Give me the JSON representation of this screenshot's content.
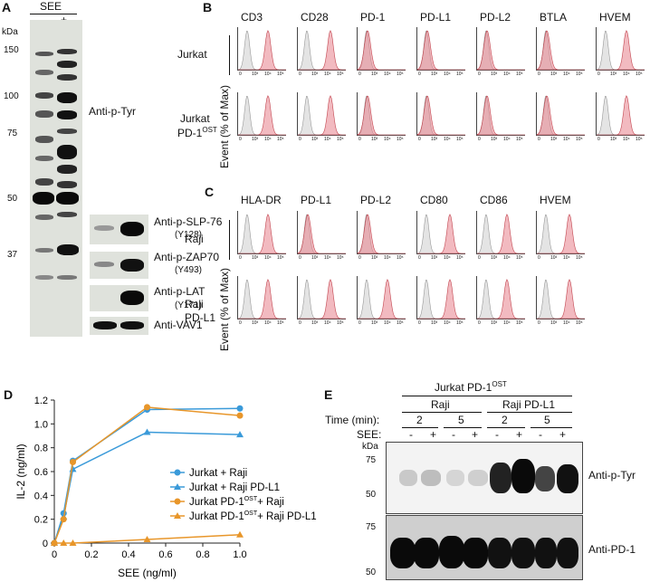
{
  "panels": {
    "A": "A",
    "B": "B",
    "C": "C",
    "D": "D",
    "E": "E"
  },
  "A": {
    "see_label": "SEE",
    "lanes": [
      "-",
      "+"
    ],
    "kda_label": "kDa",
    "markers": [
      "150",
      "100",
      "75",
      "50",
      "37"
    ],
    "main_blot_label": "Anti-p-Tyr",
    "side_blots": [
      {
        "label": "Anti-p-SLP-76",
        "sub": "(Y128)"
      },
      {
        "label": "Anti-p-ZAP70",
        "sub": "(Y493)"
      },
      {
        "label": "Anti-p-LAT",
        "sub": "(Y171)"
      },
      {
        "label": "Anti-VAV1",
        "sub": ""
      }
    ]
  },
  "B": {
    "markers": [
      "CD3",
      "CD28",
      "PD-1",
      "PD-L1",
      "PD-L2",
      "BTLA",
      "HVEM"
    ],
    "rows": [
      {
        "label": "Jurkat",
        "sub": ""
      },
      {
        "label": "Jurkat",
        "sub": "PD-1",
        "sup": "OST"
      }
    ],
    "ylabel": "Event (% of Max)"
  },
  "C": {
    "markers": [
      "HLA-DR",
      "PD-L1",
      "PD-L2",
      "CD80",
      "CD86",
      "HVEM"
    ],
    "rows": [
      {
        "label": "Raji",
        "sub": ""
      },
      {
        "label": "Raji",
        "sub": "PD-L1"
      }
    ],
    "ylabel": "Event (% of Max)"
  },
  "hist_ticks": [
    "0",
    "10³",
    "10⁴",
    "10⁵"
  ],
  "chart_data": {
    "type": "line",
    "xlabel": "SEE (ng/ml)",
    "ylabel": "IL-2 (ng/ml)",
    "xlim": [
      0,
      1.0
    ],
    "ylim": [
      0,
      1.2
    ],
    "xticks": [
      "0",
      "0.2",
      "0.4",
      "0.6",
      "0.8",
      "1.0"
    ],
    "yticks": [
      "0",
      "0.2",
      "0.4",
      "0.6",
      "0.8",
      "1.0",
      "1.2"
    ],
    "x": [
      0,
      0.05,
      0.1,
      0.5,
      1.0
    ],
    "series": [
      {
        "name": "Jurkat + Raji",
        "marker": "circle",
        "color": "#3a9ad9",
        "values": [
          0.0,
          0.25,
          0.69,
          1.12,
          1.13
        ]
      },
      {
        "name": "Jurkat + Raji PD-L1",
        "marker": "triangle",
        "color": "#3a9ad9",
        "values": [
          0.0,
          0.22,
          0.62,
          0.93,
          0.91
        ]
      },
      {
        "name": "Jurkat PD-1",
        "name_sup": "OST",
        "name_tail": "+ Raji",
        "marker": "circle",
        "color": "#e8962a",
        "values": [
          0.0,
          0.2,
          0.68,
          1.14,
          1.07
        ]
      },
      {
        "name": "Jurkat PD-1",
        "name_sup": "OST",
        "name_tail": "+ Raji PD-L1",
        "marker": "triangle",
        "color": "#e8962a",
        "values": [
          0.0,
          0.0,
          0.0,
          0.03,
          0.07
        ]
      }
    ]
  },
  "E": {
    "header": "Jurkat PD-1",
    "header_sup": "OST",
    "groups": [
      "Raji",
      "Raji PD-L1"
    ],
    "time_label": "Time (min):",
    "times": [
      "2",
      "5",
      "2",
      "5"
    ],
    "see_label": "SEE:",
    "see_marks": [
      "-",
      "+",
      "-",
      "+",
      "-",
      "+",
      "-",
      "+"
    ],
    "kda_label": "kDa",
    "top_markers": [
      "75",
      "50"
    ],
    "bottom_markers": [
      "75",
      "50"
    ],
    "top_label": "Anti-p-Tyr",
    "bottom_label": "Anti-PD-1"
  }
}
